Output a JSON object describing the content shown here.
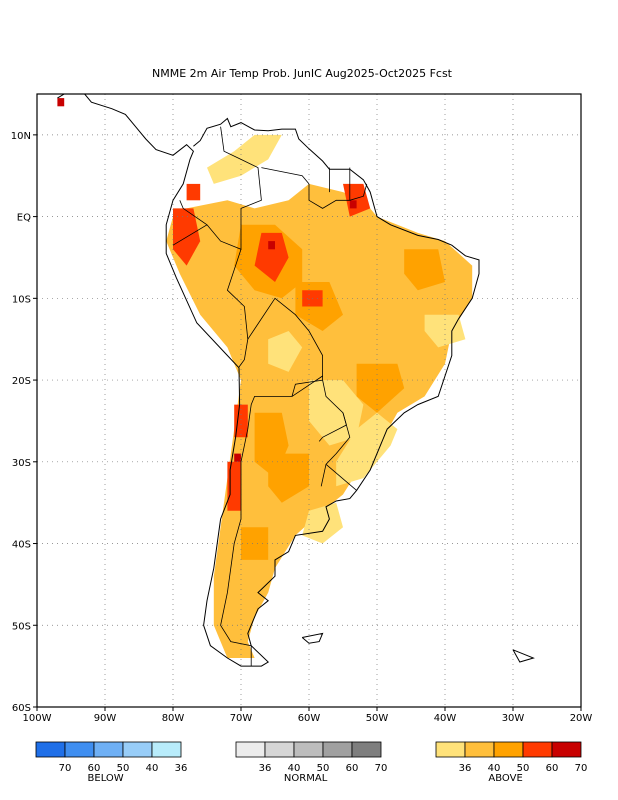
{
  "title": "NMME 2m Air Temp Prob. JunIC  Aug2025-Oct2025 Fcst",
  "map": {
    "lon_range": [
      -100,
      -20
    ],
    "lat_range": [
      -60,
      15
    ],
    "x_ticks": [
      {
        "lon": -100,
        "label": "100W"
      },
      {
        "lon": -90,
        "label": "90W"
      },
      {
        "lon": -80,
        "label": "80W"
      },
      {
        "lon": -70,
        "label": "70W"
      },
      {
        "lon": -60,
        "label": "60W"
      },
      {
        "lon": -50,
        "label": "50W"
      },
      {
        "lon": -40,
        "label": "40W"
      },
      {
        "lon": -30,
        "label": "30W"
      },
      {
        "lon": -20,
        "label": "20W"
      }
    ],
    "y_ticks": [
      {
        "lat": 10,
        "label": "10N"
      },
      {
        "lat": 0,
        "label": "EQ"
      },
      {
        "lat": -10,
        "label": "10S"
      },
      {
        "lat": -20,
        "label": "20S"
      },
      {
        "lat": -30,
        "label": "30S"
      },
      {
        "lat": -40,
        "label": "40S"
      },
      {
        "lat": -50,
        "label": "50S"
      },
      {
        "lat": -60,
        "label": "60S"
      }
    ],
    "grid": true
  },
  "colors": {
    "below": [
      "#1f6fe8",
      "#3f8ef0",
      "#6fb0f5",
      "#98cdf8",
      "#b8ecfb"
    ],
    "normal": [
      "#ececec",
      "#d6d6d6",
      "#bdbdbd",
      "#a0a0a0",
      "#7e7e7e"
    ],
    "above": [
      "#ffe27a",
      "#ffbf3c",
      "#ffa200",
      "#ff3a00",
      "#c80000"
    ]
  },
  "regions": [
    {
      "level": 1,
      "points": [
        [
          -78,
          1
        ],
        [
          -72,
          2
        ],
        [
          -68,
          1
        ],
        [
          -63,
          2
        ],
        [
          -60,
          4
        ],
        [
          -55,
          3
        ],
        [
          -52,
          2
        ],
        [
          -50,
          0
        ],
        [
          -47,
          -1
        ],
        [
          -44,
          -2
        ],
        [
          -40,
          -3
        ],
        [
          -36,
          -6
        ],
        [
          -36,
          -10
        ],
        [
          -39,
          -14
        ],
        [
          -40,
          -18
        ],
        [
          -43,
          -22
        ],
        [
          -47,
          -24
        ],
        [
          -49,
          -27
        ],
        [
          -52,
          -30
        ],
        [
          -55,
          -34
        ],
        [
          -58,
          -36
        ],
        [
          -62,
          -39
        ],
        [
          -65,
          -43
        ],
        [
          -66,
          -46
        ],
        [
          -68,
          -49
        ],
        [
          -69,
          -52
        ],
        [
          -68,
          -54
        ],
        [
          -72,
          -54
        ],
        [
          -74,
          -50
        ],
        [
          -74,
          -44
        ],
        [
          -73,
          -38
        ],
        [
          -72,
          -32
        ],
        [
          -71,
          -26
        ],
        [
          -70,
          -20
        ],
        [
          -72,
          -16
        ],
        [
          -76,
          -12
        ],
        [
          -79,
          -7
        ],
        [
          -81,
          -3
        ],
        [
          -80,
          0
        ]
      ]
    },
    {
      "level": 0,
      "points": [
        [
          -56,
          -33
        ],
        [
          -52,
          -32
        ],
        [
          -48,
          -28
        ],
        [
          -47,
          -26
        ],
        [
          -50,
          -24
        ],
        [
          -53,
          -26
        ],
        [
          -56,
          -30
        ]
      ]
    },
    {
      "level": 0,
      "points": [
        [
          -60,
          -20
        ],
        [
          -55,
          -20
        ],
        [
          -52,
          -23
        ],
        [
          -53,
          -27
        ],
        [
          -57,
          -28
        ],
        [
          -60,
          -25
        ]
      ]
    },
    {
      "level": 0,
      "points": [
        [
          -66,
          -15
        ],
        [
          -63,
          -14
        ],
        [
          -61,
          -16
        ],
        [
          -63,
          -19
        ],
        [
          -66,
          -18
        ]
      ]
    },
    {
      "level": 0,
      "points": [
        [
          -43,
          -12
        ],
        [
          -38,
          -12
        ],
        [
          -37,
          -15
        ],
        [
          -41,
          -16
        ],
        [
          -43,
          -14
        ]
      ]
    },
    {
      "level": 0,
      "points": [
        [
          -60,
          -36
        ],
        [
          -56,
          -35
        ],
        [
          -55,
          -38
        ],
        [
          -58,
          -40
        ],
        [
          -61,
          -39
        ]
      ]
    },
    {
      "level": 0,
      "points": [
        [
          -75,
          6
        ],
        [
          -71,
          8
        ],
        [
          -68,
          10
        ],
        [
          -64,
          10
        ],
        [
          -66,
          7
        ],
        [
          -70,
          5
        ],
        [
          -74,
          4
        ]
      ]
    },
    {
      "level": 2,
      "points": [
        [
          -70,
          -1
        ],
        [
          -65,
          -1
        ],
        [
          -61,
          -4
        ],
        [
          -61,
          -8
        ],
        [
          -64,
          -10
        ],
        [
          -68,
          -9
        ],
        [
          -71,
          -6
        ]
      ]
    },
    {
      "level": 2,
      "points": [
        [
          -62,
          -8
        ],
        [
          -57,
          -8
        ],
        [
          -55,
          -12
        ],
        [
          -58,
          -14
        ],
        [
          -62,
          -12
        ]
      ]
    },
    {
      "level": 2,
      "points": [
        [
          -46,
          -4
        ],
        [
          -41,
          -4
        ],
        [
          -40,
          -8
        ],
        [
          -44,
          -9
        ],
        [
          -46,
          -7
        ]
      ]
    },
    {
      "level": 2,
      "points": [
        [
          -68,
          -24
        ],
        [
          -64,
          -24
        ],
        [
          -63,
          -28
        ],
        [
          -65,
          -32
        ],
        [
          -68,
          -30
        ]
      ]
    },
    {
      "level": 2,
      "points": [
        [
          -70,
          -38
        ],
        [
          -66,
          -38
        ],
        [
          -66,
          -42
        ],
        [
          -70,
          -42
        ]
      ]
    },
    {
      "level": 2,
      "points": [
        [
          -66,
          -29
        ],
        [
          -60,
          -29
        ],
        [
          -60,
          -33
        ],
        [
          -64,
          -35
        ],
        [
          -66,
          -33
        ]
      ]
    },
    {
      "level": 2,
      "points": [
        [
          -53,
          -18
        ],
        [
          -47,
          -18
        ],
        [
          -46,
          -21
        ],
        [
          -50,
          -24
        ],
        [
          -53,
          -22
        ]
      ]
    },
    {
      "level": 3,
      "points": [
        [
          -67,
          -2
        ],
        [
          -64,
          -2
        ],
        [
          -63,
          -5
        ],
        [
          -65,
          -8
        ],
        [
          -68,
          -6
        ]
      ]
    },
    {
      "level": 3,
      "points": [
        [
          -80,
          1
        ],
        [
          -77,
          1
        ],
        [
          -76,
          -3
        ],
        [
          -78,
          -6
        ],
        [
          -80,
          -4
        ]
      ]
    },
    {
      "level": 3,
      "points": [
        [
          -55,
          4
        ],
        [
          -52,
          4
        ],
        [
          -51,
          1
        ],
        [
          -54,
          0
        ]
      ]
    },
    {
      "level": 3,
      "points": [
        [
          -71,
          -23
        ],
        [
          -69,
          -23
        ],
        [
          -69,
          -27
        ],
        [
          -71,
          -27
        ]
      ]
    },
    {
      "level": 3,
      "points": [
        [
          -72,
          -30
        ],
        [
          -70,
          -30
        ],
        [
          -70,
          -36
        ],
        [
          -72,
          -36
        ]
      ]
    },
    {
      "level": 3,
      "points": [
        [
          -61,
          -9
        ],
        [
          -58,
          -9
        ],
        [
          -58,
          -11
        ],
        [
          -61,
          -11
        ]
      ]
    },
    {
      "level": 3,
      "points": [
        [
          -78,
          4
        ],
        [
          -76,
          4
        ],
        [
          -76,
          2
        ],
        [
          -78,
          2
        ]
      ]
    },
    {
      "level": 4,
      "points": [
        [
          -97,
          14.5
        ],
        [
          -96,
          14.5
        ],
        [
          -96,
          13.5
        ],
        [
          -97,
          13.5
        ]
      ]
    },
    {
      "level": 4,
      "points": [
        [
          -66,
          -3
        ],
        [
          -65,
          -3
        ],
        [
          -65,
          -4
        ],
        [
          -66,
          -4
        ]
      ]
    },
    {
      "level": 4,
      "points": [
        [
          -54,
          2
        ],
        [
          -53,
          2
        ],
        [
          -53,
          1
        ],
        [
          -54,
          1
        ]
      ]
    },
    {
      "level": 4,
      "points": [
        [
          -71,
          -29
        ],
        [
          -70,
          -29
        ],
        [
          -70,
          -30
        ],
        [
          -71,
          -30
        ]
      ]
    }
  ],
  "coastlines": [
    [
      [
        -97,
        14.5
      ],
      [
        -94,
        16
      ],
      [
        -92,
        14
      ],
      [
        -89,
        13.2
      ],
      [
        -87,
        12.5
      ],
      [
        -85.5,
        11
      ],
      [
        -84,
        9.5
      ],
      [
        -82.5,
        8.2
      ],
      [
        -80,
        7.5
      ],
      [
        -78,
        8.8
      ],
      [
        -77,
        8
      ],
      [
        -77.5,
        7
      ],
      [
        -78.5,
        4
      ],
      [
        -80,
        2
      ],
      [
        -81,
        -1
      ],
      [
        -81,
        -4.5
      ],
      [
        -79.5,
        -7.5
      ],
      [
        -76.5,
        -13
      ],
      [
        -72,
        -17
      ],
      [
        -70.3,
        -18.5
      ],
      [
        -70.2,
        -23
      ],
      [
        -70.8,
        -27
      ],
      [
        -71.6,
        -31
      ],
      [
        -71.6,
        -34
      ],
      [
        -73,
        -37
      ],
      [
        -73.5,
        -40
      ],
      [
        -74,
        -43
      ],
      [
        -75,
        -47
      ],
      [
        -75.5,
        -50
      ],
      [
        -74.5,
        -52.5
      ],
      [
        -72,
        -54
      ],
      [
        -70,
        -55
      ],
      [
        -67,
        -55
      ],
      [
        -66,
        -54.5
      ],
      [
        -68.5,
        -52.5
      ],
      [
        -69,
        -51
      ],
      [
        -67.5,
        -48
      ],
      [
        -66,
        -47
      ],
      [
        -67.5,
        -46
      ],
      [
        -65,
        -44
      ],
      [
        -65,
        -42
      ],
      [
        -63,
        -41
      ],
      [
        -62,
        -39
      ],
      [
        -58,
        -38.5
      ],
      [
        -57,
        -37
      ],
      [
        -57.5,
        -35.5
      ],
      [
        -56,
        -34.8
      ],
      [
        -54,
        -34.5
      ],
      [
        -53,
        -33.5
      ],
      [
        -51,
        -31
      ],
      [
        -50,
        -29
      ],
      [
        -48.5,
        -26
      ],
      [
        -46,
        -24
      ],
      [
        -44,
        -23
      ],
      [
        -41,
        -22
      ],
      [
        -40,
        -19.5
      ],
      [
        -39,
        -17
      ],
      [
        -39,
        -14
      ],
      [
        -38,
        -12.5
      ],
      [
        -36,
        -10
      ],
      [
        -35,
        -7
      ],
      [
        -35,
        -5.3
      ],
      [
        -37,
        -4.8
      ],
      [
        -39,
        -3.5
      ],
      [
        -41,
        -2.8
      ],
      [
        -44,
        -2.3
      ],
      [
        -48,
        -1
      ],
      [
        -50,
        0
      ],
      [
        -51,
        3
      ],
      [
        -52,
        4.5
      ],
      [
        -54,
        5.8
      ],
      [
        -57,
        5.8
      ],
      [
        -58,
        6.8
      ],
      [
        -60,
        8.3
      ],
      [
        -61.5,
        9.5
      ],
      [
        -62,
        10.7
      ],
      [
        -64,
        10.7
      ],
      [
        -66,
        10.5
      ],
      [
        -68,
        10.6
      ],
      [
        -70,
        11.5
      ],
      [
        -71.5,
        11
      ],
      [
        -72,
        12
      ],
      [
        -73,
        11.3
      ],
      [
        -75,
        10.8
      ],
      [
        -76,
        9.3
      ],
      [
        -77,
        8.6
      ]
    ],
    [
      [
        -61,
        -51.5
      ],
      [
        -58,
        -51
      ],
      [
        -58.5,
        -52
      ],
      [
        -60,
        -52.2
      ],
      [
        -61,
        -51.5
      ]
    ],
    [
      [
        -30,
        -53
      ],
      [
        -27,
        -54
      ],
      [
        -29,
        -54.5
      ],
      [
        -30,
        -53
      ]
    ]
  ],
  "borders": [
    [
      [
        -73,
        11
      ],
      [
        -72.5,
        8
      ],
      [
        -70,
        7
      ],
      [
        -67.5,
        6
      ],
      [
        -67,
        2
      ],
      [
        -70,
        1
      ],
      [
        -70,
        -4
      ],
      [
        -73,
        -3
      ],
      [
        -75,
        -1
      ],
      [
        -78.5,
        1
      ],
      [
        -79,
        2
      ]
    ],
    [
      [
        -75,
        -1
      ],
      [
        -80,
        -3.5
      ]
    ],
    [
      [
        -70,
        -4
      ],
      [
        -72,
        -9
      ],
      [
        -69.5,
        -11
      ],
      [
        -69,
        -15
      ],
      [
        -69.5,
        -17.5
      ],
      [
        -70.3,
        -18.4
      ]
    ],
    [
      [
        -69,
        -15
      ],
      [
        -65,
        -10
      ],
      [
        -62,
        -12
      ],
      [
        -60,
        -14
      ],
      [
        -58,
        -17
      ],
      [
        -58,
        -20
      ],
      [
        -62,
        -20.5
      ],
      [
        -62.5,
        -22
      ],
      [
        -66,
        -22
      ],
      [
        -68,
        -22
      ],
      [
        -68.5,
        -23
      ],
      [
        -69,
        -26
      ],
      [
        -70,
        -30
      ],
      [
        -70,
        -37
      ],
      [
        -71,
        -40
      ],
      [
        -72,
        -46
      ],
      [
        -73,
        -50
      ],
      [
        -71.5,
        -52
      ],
      [
        -68.5,
        -52.5
      ],
      [
        -68.5,
        -55
      ]
    ],
    [
      [
        -58,
        -20
      ],
      [
        -57.5,
        -22
      ],
      [
        -55,
        -24
      ],
      [
        -54.5,
        -25.5
      ],
      [
        -58,
        -27
      ],
      [
        -58.5,
        -27.5
      ]
    ],
    [
      [
        -55,
        -24
      ],
      [
        -54,
        -27
      ],
      [
        -56,
        -29
      ],
      [
        -57.5,
        -30.3
      ],
      [
        -58.2,
        -33
      ]
    ],
    [
      [
        -57.5,
        -30.3
      ],
      [
        -53,
        -33.5
      ]
    ],
    [
      [
        -62.5,
        -22
      ],
      [
        -58,
        -19.5
      ]
    ],
    [
      [
        -60,
        4
      ],
      [
        -60,
        2
      ],
      [
        -58,
        1
      ],
      [
        -56,
        2
      ],
      [
        -54,
        2
      ],
      [
        -52,
        2.5
      ],
      [
        -51.5,
        4
      ]
    ],
    [
      [
        -67,
        6
      ],
      [
        -61,
        5
      ],
      [
        -60,
        4
      ]
    ],
    [
      [
        -57,
        6
      ],
      [
        -57,
        3
      ]
    ],
    [
      [
        -54,
        6
      ],
      [
        -54,
        2
      ]
    ]
  ],
  "legend": {
    "groups": [
      {
        "key": "below",
        "caption": "BELOW",
        "labels": [
          "70",
          "60",
          "50",
          "40",
          "36"
        ]
      },
      {
        "key": "normal",
        "caption": "NORMAL",
        "labels": [
          "36",
          "40",
          "50",
          "60",
          "70"
        ]
      },
      {
        "key": "above",
        "caption": "ABOVE",
        "labels": [
          "36",
          "40",
          "50",
          "60",
          "70"
        ]
      }
    ]
  }
}
